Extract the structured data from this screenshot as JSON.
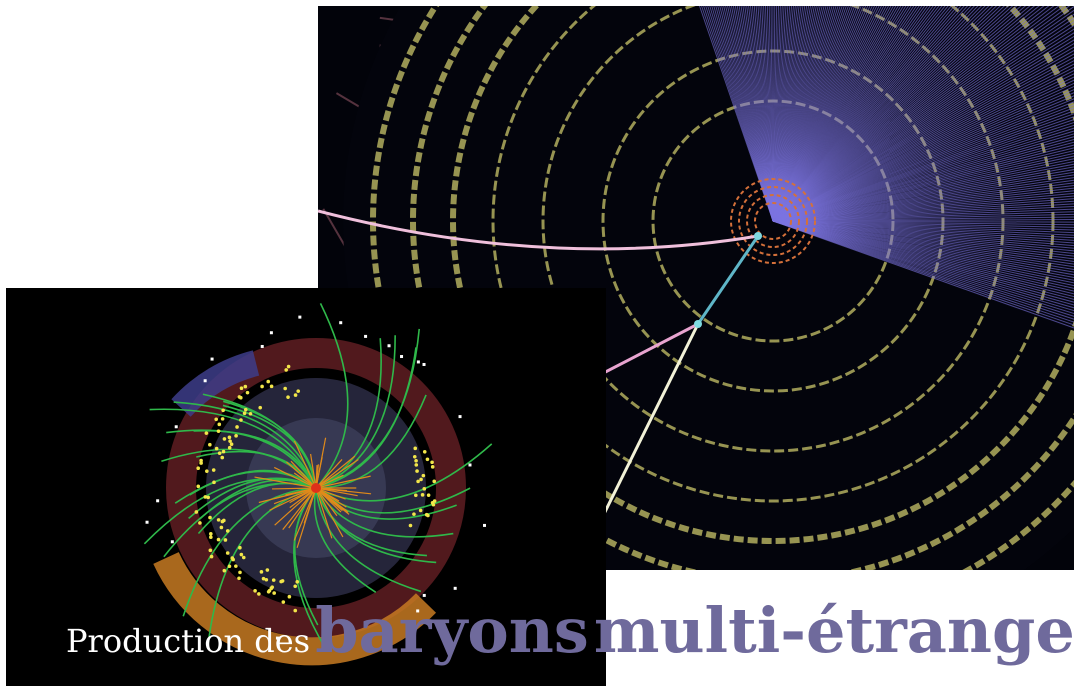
{
  "title": {
    "prefix": "Production des",
    "word1": "baryons",
    "word2": "multi-étranges"
  },
  "images": {
    "large": "particle-collision-event-display-large",
    "small": "particle-collision-event-display-small"
  },
  "colors": {
    "title_small": "#ffffff",
    "title_big": "#6f6a9c",
    "background": "#ffffff",
    "panel_background": "#02030a",
    "fan_tracks": "#7c74e0",
    "detector_layers": "#c9c46a",
    "muon_chambers": "#9a5a6a",
    "inner_tracks": "#2fb84a",
    "core_tracks": "#e08a1a"
  }
}
